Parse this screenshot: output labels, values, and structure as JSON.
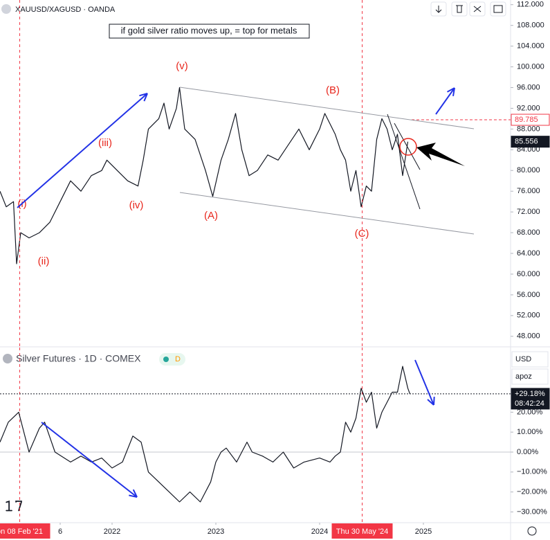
{
  "chart_data": [
    {
      "type": "line",
      "title": "XAUUSD/XAGUSD · OANDA",
      "annotation": "if gold silver ratio moves up, = top for metals",
      "wave_labels": [
        "(i)",
        "(ii)",
        "(iii)",
        "(iv)",
        "(v)",
        "(A)",
        "(B)",
        "(C)"
      ],
      "color": "#131722",
      "x": [
        2020.92,
        2020.98,
        2021.05,
        2021.08,
        2021.12,
        2021.2,
        2021.3,
        2021.4,
        2021.5,
        2021.6,
        2021.7,
        2021.8,
        2021.9,
        2021.95,
        2022.05,
        2022.15,
        2022.25,
        2022.3,
        2022.35,
        2022.45,
        2022.5,
        2022.55,
        2022.62,
        2022.65,
        2022.7,
        2022.8,
        2022.9,
        2022.97,
        2023.05,
        2023.12,
        2023.19,
        2023.25,
        2023.32,
        2023.4,
        2023.5,
        2023.6,
        2023.7,
        2023.8,
        2023.9,
        2024.0,
        2024.05,
        2024.1,
        2024.15,
        2024.2,
        2024.25,
        2024.3,
        2024.35,
        2024.4,
        2024.45,
        2024.5,
        2024.55,
        2024.6,
        2024.65,
        2024.7,
        2024.75,
        2024.8,
        2024.85
      ],
      "values": [
        76,
        73,
        74,
        62,
        68,
        67,
        68,
        70,
        74,
        78,
        76,
        79,
        80,
        82,
        80,
        78,
        77,
        82,
        88,
        90,
        93,
        88,
        92,
        96,
        88,
        86,
        80,
        75,
        82,
        86,
        91,
        84,
        79,
        80,
        83,
        82,
        85,
        88,
        84,
        88,
        91,
        89,
        87,
        84,
        82,
        76,
        80,
        73,
        77,
        76,
        86,
        90,
        88,
        84,
        87,
        79,
        85.556
      ],
      "xlim": [
        2020.92,
        2025.84
      ],
      "ylim": [
        46.1,
        112.9
      ],
      "yticks": [
        {
          "value": 48,
          "label": "48.000"
        },
        {
          "value": 52,
          "label": "52.000"
        },
        {
          "value": 56,
          "label": "56.000"
        },
        {
          "value": 60,
          "label": "60.000"
        },
        {
          "value": 64,
          "label": "64.000"
        },
        {
          "value": 68,
          "label": "68.000"
        },
        {
          "value": 72,
          "label": "72.000"
        },
        {
          "value": 76,
          "label": "76.000"
        },
        {
          "value": 80,
          "label": "80.000"
        },
        {
          "value": 84,
          "label": "84.000"
        },
        {
          "value": 88,
          "label": "88.000"
        },
        {
          "value": 92,
          "label": "92.000"
        },
        {
          "value": 96,
          "label": "96.000"
        },
        {
          "value": 100,
          "label": "100.000"
        },
        {
          "value": 104,
          "label": "104.000"
        },
        {
          "value": 108,
          "label": "108.000"
        },
        {
          "value": 112,
          "label": "112.000"
        }
      ],
      "price_labels": [
        {
          "value": 89.785,
          "label": "89.785",
          "color": "#f23645"
        },
        {
          "value": 85.556,
          "label": "85.556",
          "color": "#131722"
        }
      ]
    },
    {
      "type": "line",
      "title": "Silver Futures · 1D · COMEX",
      "badge": "D",
      "currency": "USD",
      "scale_mode": "apoz",
      "countdown": "08:42:24",
      "color": "#131722",
      "x": [
        2020.92,
        2021.0,
        2021.1,
        2021.2,
        2021.3,
        2021.35,
        2021.45,
        2021.6,
        2021.7,
        2021.8,
        2021.9,
        2022.0,
        2022.1,
        2022.2,
        2022.28,
        2022.35,
        2022.45,
        2022.55,
        2022.65,
        2022.75,
        2022.85,
        2022.95,
        2023.0,
        2023.05,
        2023.1,
        2023.2,
        2023.3,
        2023.35,
        2023.45,
        2023.55,
        2023.65,
        2023.75,
        2023.85,
        2024.0,
        2024.1,
        2024.15,
        2024.2,
        2024.25,
        2024.3,
        2024.35,
        2024.4,
        2024.45,
        2024.5,
        2024.55,
        2024.6,
        2024.65,
        2024.7,
        2024.75,
        2024.8,
        2024.85,
        2024.87
      ],
      "values": [
        5,
        15,
        20,
        0,
        12,
        15,
        0,
        -5,
        -2,
        -5,
        -3,
        -8,
        -5,
        8,
        5,
        -10,
        -15,
        -20,
        -25,
        -20,
        -25,
        -15,
        -5,
        0,
        2,
        -5,
        5,
        0,
        -2,
        -5,
        0,
        -8,
        -5,
        -3,
        -5,
        -2,
        0,
        15,
        10,
        17,
        32,
        25,
        30,
        12,
        20,
        25,
        30,
        30,
        43,
        32,
        29.18
      ],
      "xlim": [
        2020.92,
        2025.84
      ],
      "ylim": [
        -35.4,
        52.4
      ],
      "yticks": [
        {
          "value": -30,
          "label": "−30.00%"
        },
        {
          "value": -20,
          "label": "−20.00%"
        },
        {
          "value": -10,
          "label": "−10.00%"
        },
        {
          "value": 0,
          "label": "0.00%"
        },
        {
          "value": 10,
          "label": "10.00%"
        },
        {
          "value": 20,
          "label": "20.00%"
        }
      ],
      "xticks": [
        {
          "value": 2021.5,
          "label": "6"
        },
        2022,
        2023,
        2024,
        2025
      ],
      "crosshair_labels": [
        {
          "value": 2021.11,
          "label": "on 08 Feb '21"
        },
        {
          "value": 2024.41,
          "label": "Thu 30 May '24"
        }
      ],
      "price_labels": [
        {
          "value": 29.18,
          "label": "+29.18%",
          "color": "#131722"
        }
      ]
    }
  ]
}
